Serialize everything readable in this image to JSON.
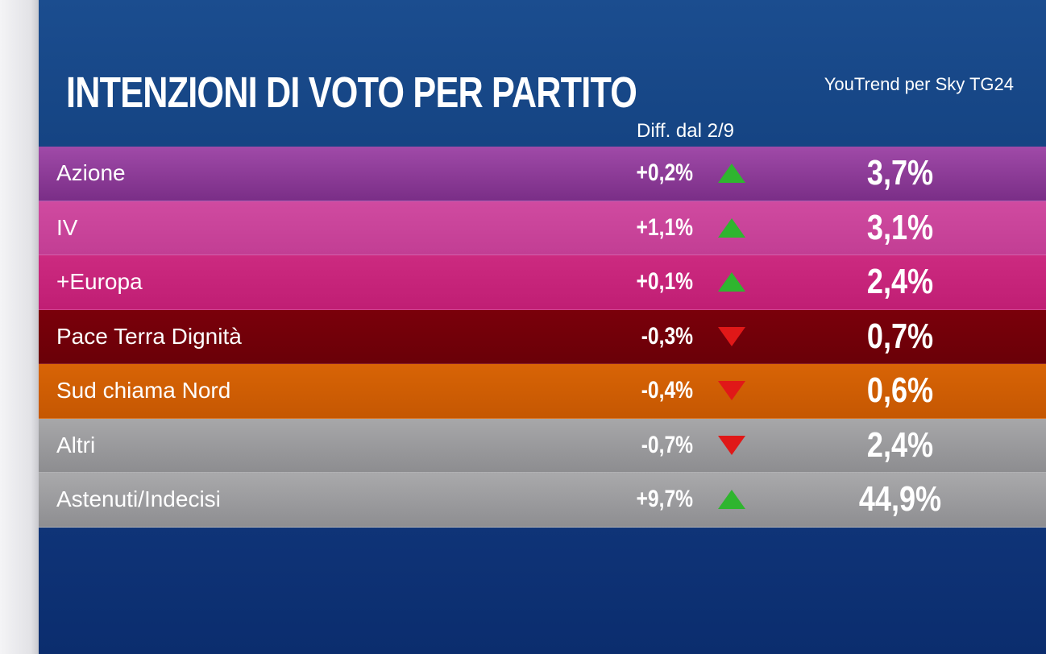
{
  "header": {
    "title": "INTENZIONI DI VOTO PER PARTITO",
    "source": "YouTrend per Sky TG24",
    "diff_label": "Diff. dal 2/9"
  },
  "chart_data": {
    "type": "table",
    "title": "INTENZIONI DI VOTO PER PARTITO",
    "columns": [
      "",
      "Diff. dal 2/9",
      ""
    ],
    "rows": [
      {
        "name": "Azione",
        "diff": "+0,2%",
        "direction": "up",
        "value": "3,7%",
        "color_top": "#a04aa8",
        "color_bottom": "#7a2e87"
      },
      {
        "name": "IV",
        "diff": "+1,1%",
        "direction": "up",
        "value": "3,1%",
        "color_top": "#d04aa0",
        "color_bottom": "#c23e94"
      },
      {
        "name": "+Europa",
        "diff": "+0,1%",
        "direction": "up",
        "value": "2,4%",
        "color_top": "#cc2a80",
        "color_bottom": "#c01e74"
      },
      {
        "name": "Pace Terra Dignità",
        "diff": "-0,3%",
        "direction": "down",
        "value": "0,7%",
        "color_top": "#7a000a",
        "color_bottom": "#6a0008"
      },
      {
        "name": "Sud chiama Nord",
        "diff": "-0,4%",
        "direction": "down",
        "value": "0,6%",
        "color_top": "#d86406",
        "color_bottom": "#c55702"
      },
      {
        "name": "Altri",
        "diff": "-0,7%",
        "direction": "down",
        "value": "2,4%",
        "color_top": "#a7a7a9",
        "color_bottom": "#8d8d90"
      },
      {
        "name": "Astenuti/Indecisi",
        "diff": "+9,7%",
        "direction": "up",
        "value": "44,9%",
        "color_top": "#a9a9ab",
        "color_bottom": "#8e8e91"
      }
    ]
  },
  "colors": {
    "arrow_up": "#2fb52f",
    "arrow_down": "#e01818"
  }
}
